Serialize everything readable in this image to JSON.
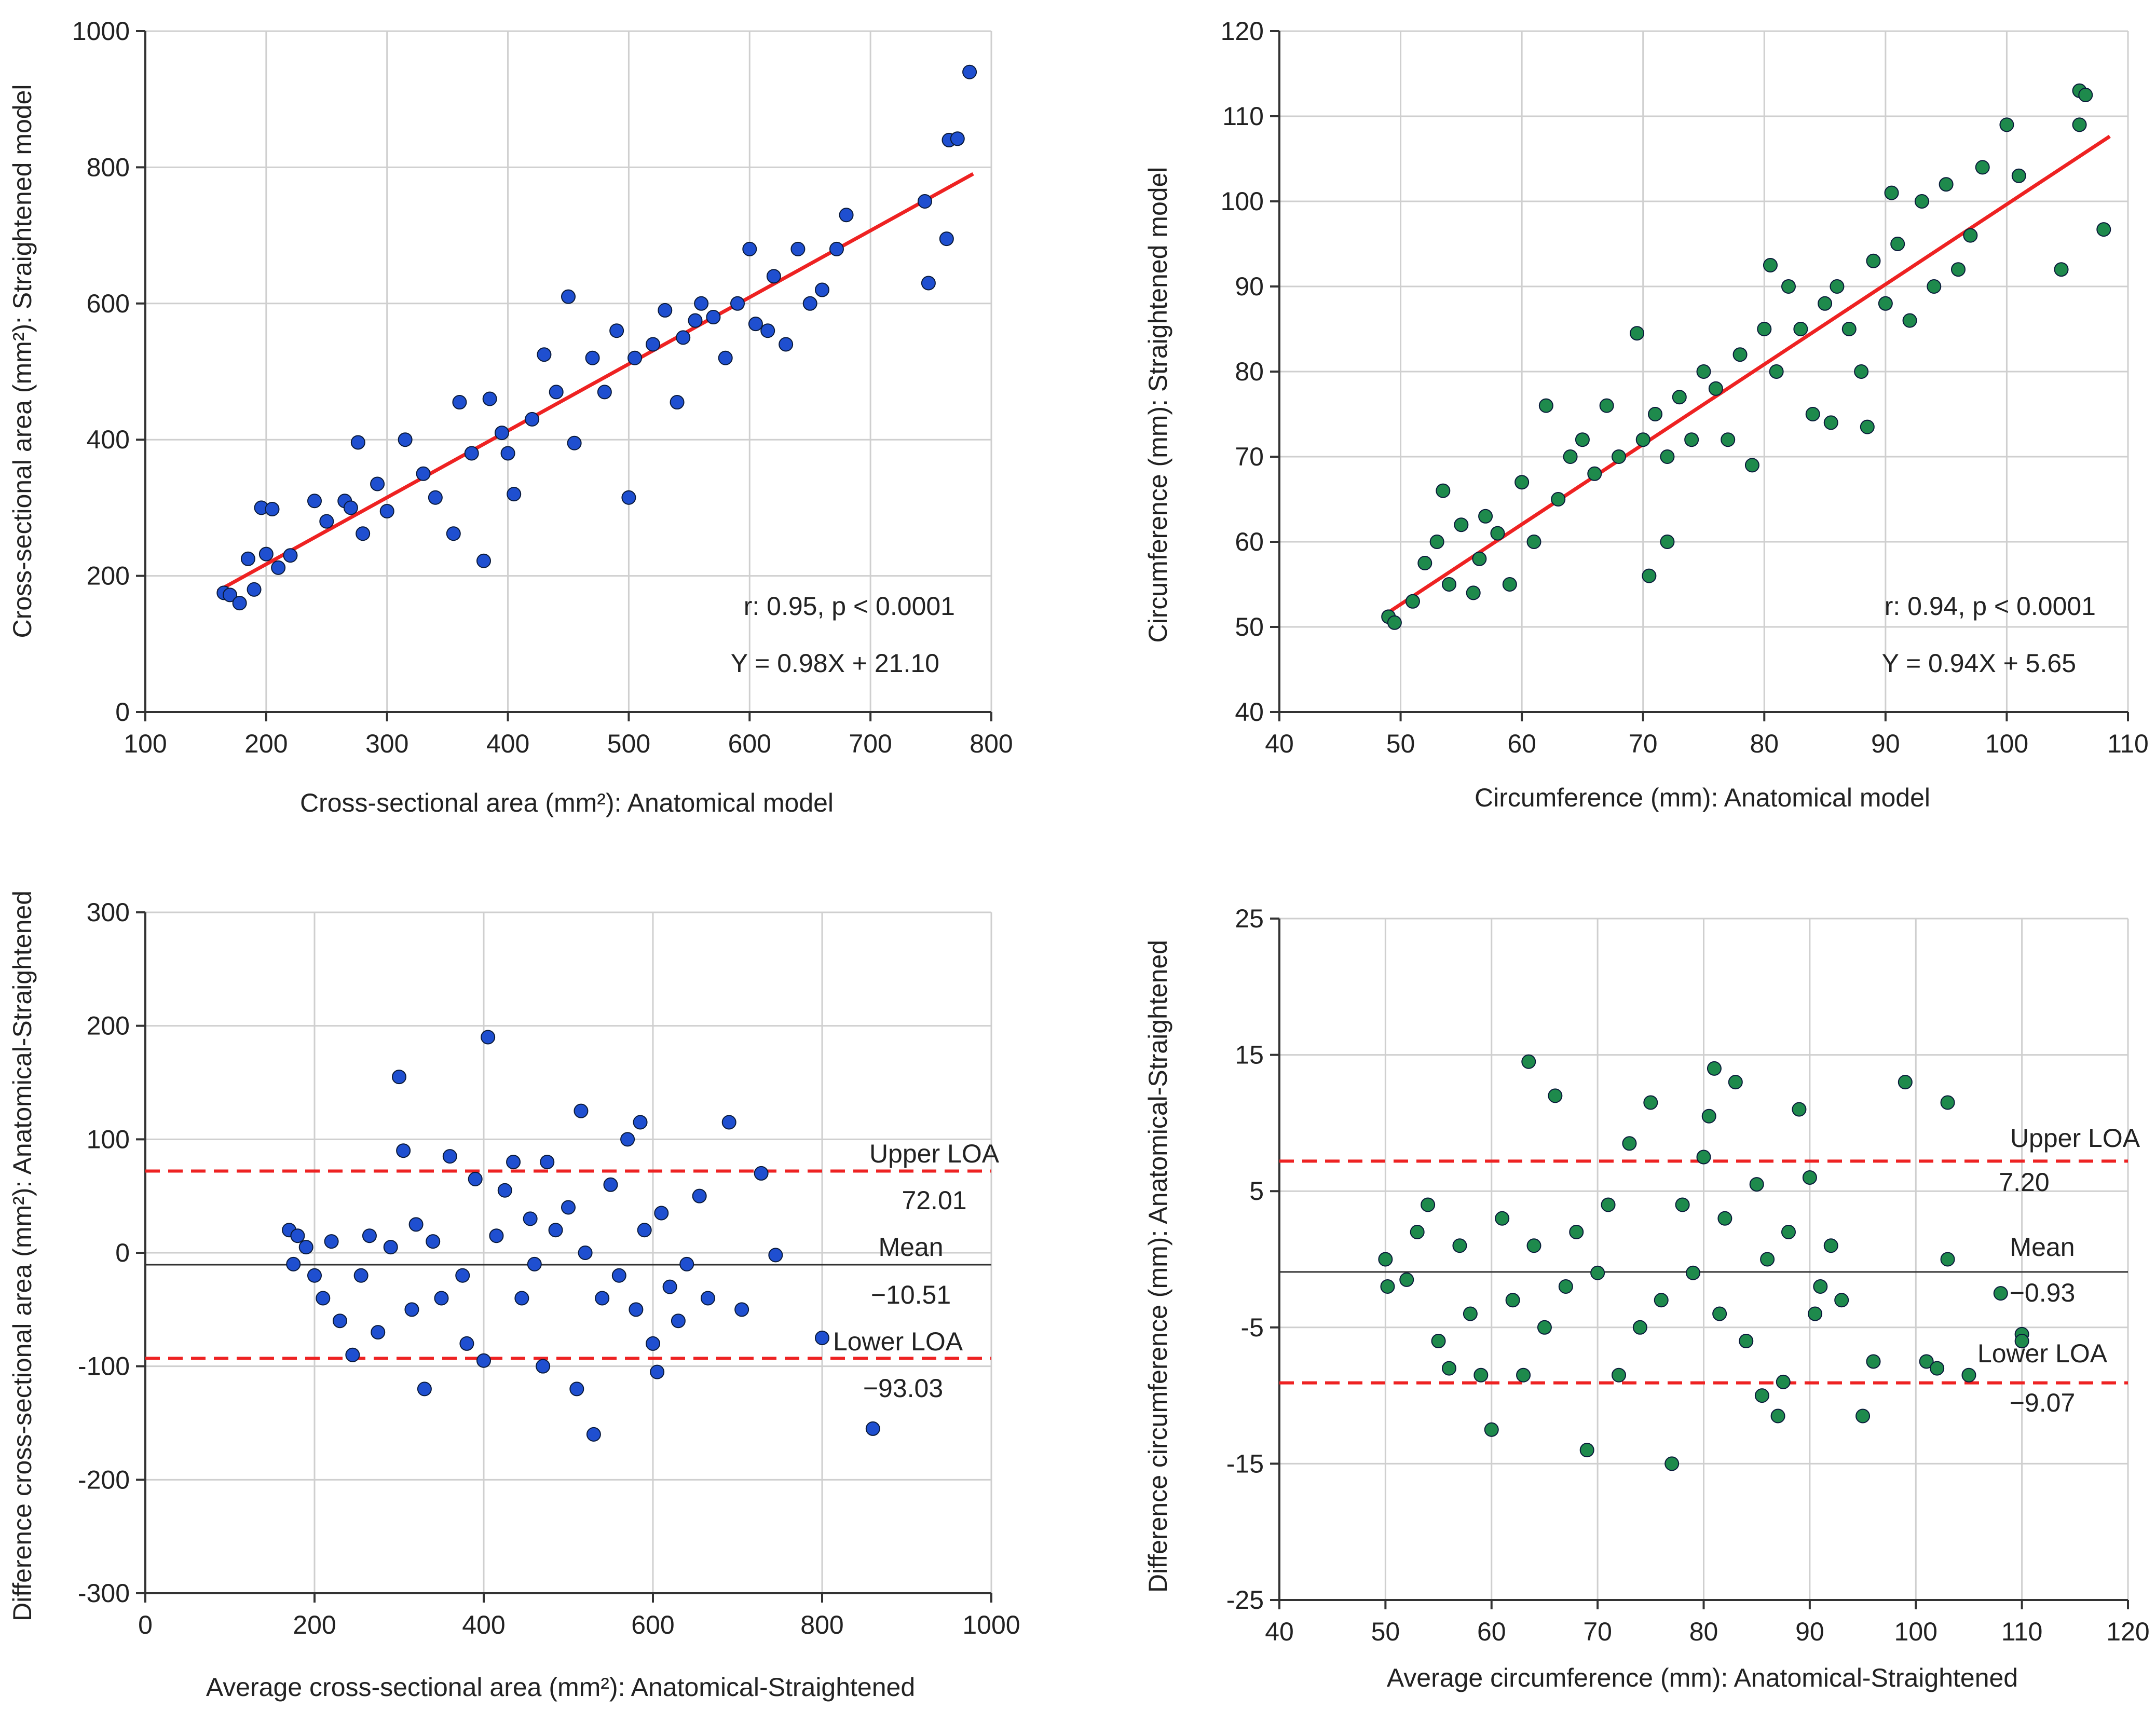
{
  "chart_data": [
    {
      "type": "scatter",
      "xlabel": "Cross-sectional area (mm²): Anatomical model",
      "ylabel": "Cross-sectional area (mm²): Straightened model",
      "xlim": [
        100,
        800
      ],
      "ylim": [
        0,
        1000
      ],
      "xticks": [
        100,
        200,
        300,
        400,
        500,
        600,
        700,
        800
      ],
      "yticks": [
        0,
        200,
        400,
        600,
        800,
        1000
      ],
      "grid": true,
      "point_color": "#1f4fd0",
      "line_color": "#ee2222",
      "annotations": [
        "r: 0.95, p < 0.0001",
        "Y = 0.98X + 21.10"
      ],
      "regression": {
        "slope": 0.98,
        "intercept": 21.1,
        "x_range": [
          160,
          785
        ]
      },
      "points": [
        [
          165,
          175
        ],
        [
          170,
          172
        ],
        [
          178,
          160
        ],
        [
          185,
          225
        ],
        [
          190,
          180
        ],
        [
          196,
          300
        ],
        [
          200,
          232
        ],
        [
          205,
          298
        ],
        [
          210,
          212
        ],
        [
          220,
          230
        ],
        [
          240,
          310
        ],
        [
          250,
          280
        ],
        [
          265,
          310
        ],
        [
          270,
          300
        ],
        [
          276,
          396
        ],
        [
          280,
          262
        ],
        [
          292,
          335
        ],
        [
          300,
          295
        ],
        [
          315,
          400
        ],
        [
          330,
          350
        ],
        [
          340,
          315
        ],
        [
          355,
          262
        ],
        [
          360,
          455
        ],
        [
          370,
          380
        ],
        [
          380,
          222
        ],
        [
          385,
          460
        ],
        [
          395,
          410
        ],
        [
          400,
          380
        ],
        [
          405,
          320
        ],
        [
          420,
          430
        ],
        [
          430,
          525
        ],
        [
          440,
          470
        ],
        [
          450,
          610
        ],
        [
          455,
          395
        ],
        [
          470,
          520
        ],
        [
          480,
          470
        ],
        [
          490,
          560
        ],
        [
          500,
          315
        ],
        [
          505,
          520
        ],
        [
          520,
          540
        ],
        [
          530,
          590
        ],
        [
          540,
          455
        ],
        [
          545,
          550
        ],
        [
          555,
          575
        ],
        [
          560,
          600
        ],
        [
          570,
          580
        ],
        [
          580,
          520
        ],
        [
          590,
          600
        ],
        [
          600,
          680
        ],
        [
          605,
          570
        ],
        [
          615,
          560
        ],
        [
          620,
          640
        ],
        [
          630,
          540
        ],
        [
          640,
          680
        ],
        [
          650,
          600
        ],
        [
          660,
          620
        ],
        [
          672,
          680
        ],
        [
          680,
          730
        ],
        [
          745,
          750
        ],
        [
          748,
          630
        ],
        [
          763,
          695
        ],
        [
          765,
          840
        ],
        [
          772,
          842
        ],
        [
          782,
          940
        ]
      ]
    },
    {
      "type": "scatter",
      "xlabel": "Circumference (mm): Anatomical model",
      "ylabel": "Circumference (mm): Straightened model",
      "xlim": [
        40,
        110
      ],
      "ylim": [
        40,
        120
      ],
      "xticks": [
        40,
        50,
        60,
        70,
        80,
        90,
        100,
        110
      ],
      "yticks": [
        40,
        50,
        60,
        70,
        80,
        90,
        100,
        110,
        120
      ],
      "grid": true,
      "point_color": "#1e8a4c",
      "line_color": "#ee2222",
      "annotations": [
        "r: 0.94, p < 0.0001",
        "Y = 0.94X + 5.65"
      ],
      "regression": {
        "slope": 0.94,
        "intercept": 5.65,
        "x_range": [
          49,
          108.5
        ]
      },
      "points": [
        [
          49,
          51.2
        ],
        [
          49.5,
          50.5
        ],
        [
          51,
          53
        ],
        [
          52,
          57.5
        ],
        [
          53,
          60
        ],
        [
          53.5,
          66
        ],
        [
          54,
          55
        ],
        [
          55,
          62
        ],
        [
          56,
          54
        ],
        [
          56.5,
          58
        ],
        [
          57,
          63
        ],
        [
          58,
          61
        ],
        [
          59,
          55
        ],
        [
          60,
          67
        ],
        [
          61,
          60
        ],
        [
          62,
          76
        ],
        [
          63,
          65
        ],
        [
          64,
          70
        ],
        [
          65,
          72
        ],
        [
          66,
          68
        ],
        [
          67,
          76
        ],
        [
          68,
          70
        ],
        [
          69.5,
          84.5
        ],
        [
          70,
          72
        ],
        [
          70.5,
          56
        ],
        [
          71,
          75
        ],
        [
          72,
          60
        ],
        [
          72,
          70
        ],
        [
          73,
          77
        ],
        [
          74,
          72
        ],
        [
          75,
          80
        ],
        [
          76,
          78
        ],
        [
          77,
          72
        ],
        [
          78,
          82
        ],
        [
          79,
          69
        ],
        [
          80,
          85
        ],
        [
          80.5,
          92.5
        ],
        [
          81,
          80
        ],
        [
          82,
          90
        ],
        [
          83,
          85
        ],
        [
          84,
          75
        ],
        [
          85,
          88
        ],
        [
          85.5,
          74
        ],
        [
          86,
          90
        ],
        [
          87,
          85
        ],
        [
          88,
          80
        ],
        [
          88.5,
          73.5
        ],
        [
          89,
          93
        ],
        [
          90,
          88
        ],
        [
          90.5,
          101
        ],
        [
          91,
          95
        ],
        [
          92,
          86
        ],
        [
          93,
          100
        ],
        [
          94,
          90
        ],
        [
          95,
          102
        ],
        [
          96,
          92
        ],
        [
          97,
          96
        ],
        [
          98,
          104
        ],
        [
          100,
          109
        ],
        [
          101,
          103
        ],
        [
          104.5,
          92
        ],
        [
          106,
          113
        ],
        [
          106,
          109
        ],
        [
          106.5,
          112.5
        ],
        [
          108,
          96.7
        ]
      ]
    },
    {
      "type": "scatter",
      "xlabel": "Average cross-sectional area (mm²): Anatomical-Straightened",
      "ylabel": "Difference cross-sectional area (mm²): Anatomical-Straightened",
      "xlim": [
        0,
        1000
      ],
      "ylim": [
        -300,
        300
      ],
      "xticks": [
        0,
        200,
        400,
        600,
        800,
        1000
      ],
      "yticks": [
        -300,
        -200,
        -100,
        0,
        100,
        200,
        300
      ],
      "grid": true,
      "point_color": "#1f4fd0",
      "mean": -10.51,
      "upper_loa": 72.01,
      "lower_loa": -93.03,
      "labels": {
        "upper": "Upper LOA",
        "upper_value": "72.01",
        "mean": "Mean",
        "mean_value": "−10.51",
        "lower": "Lower LOA",
        "lower_value": "−93.03"
      },
      "points": [
        [
          170,
          20
        ],
        [
          175,
          -10
        ],
        [
          180,
          15
        ],
        [
          190,
          5
        ],
        [
          200,
          -20
        ],
        [
          210,
          -40
        ],
        [
          220,
          10
        ],
        [
          230,
          -60
        ],
        [
          245,
          -90
        ],
        [
          255,
          -20
        ],
        [
          265,
          15
        ],
        [
          275,
          -70
        ],
        [
          290,
          5
        ],
        [
          300,
          155
        ],
        [
          305,
          90
        ],
        [
          315,
          -50
        ],
        [
          320,
          25
        ],
        [
          330,
          -120
        ],
        [
          340,
          10
        ],
        [
          350,
          -40
        ],
        [
          360,
          85
        ],
        [
          375,
          -20
        ],
        [
          380,
          -80
        ],
        [
          390,
          65
        ],
        [
          400,
          -95
        ],
        [
          405,
          190
        ],
        [
          415,
          15
        ],
        [
          425,
          55
        ],
        [
          435,
          80
        ],
        [
          445,
          -40
        ],
        [
          455,
          30
        ],
        [
          460,
          -10
        ],
        [
          470,
          -100
        ],
        [
          475,
          80
        ],
        [
          485,
          20
        ],
        [
          500,
          40
        ],
        [
          510,
          -120
        ],
        [
          515,
          125
        ],
        [
          520,
          0
        ],
        [
          530,
          -160
        ],
        [
          540,
          -40
        ],
        [
          550,
          60
        ],
        [
          560,
          -20
        ],
        [
          570,
          100
        ],
        [
          580,
          -50
        ],
        [
          585,
          115
        ],
        [
          590,
          20
        ],
        [
          600,
          -80
        ],
        [
          605,
          -105
        ],
        [
          610,
          35
        ],
        [
          620,
          -30
        ],
        [
          630,
          -60
        ],
        [
          640,
          -10
        ],
        [
          655,
          50
        ],
        [
          665,
          -40
        ],
        [
          690,
          115
        ],
        [
          705,
          -50
        ],
        [
          728,
          70
        ],
        [
          745,
          -2
        ],
        [
          800,
          -75
        ],
        [
          860,
          -155
        ]
      ]
    },
    {
      "type": "scatter",
      "xlabel": "Average circumference (mm): Anatomical-Straightened",
      "ylabel": "Difference circumference (mm): Anatomical-Straightened",
      "xlim": [
        40,
        120
      ],
      "ylim": [
        -25,
        25
      ],
      "xticks": [
        40,
        50,
        60,
        70,
        80,
        90,
        100,
        110,
        120
      ],
      "yticks": [
        -25,
        -15,
        -5,
        5,
        15,
        25
      ],
      "grid": true,
      "point_color": "#1e8a4c",
      "mean": -0.93,
      "upper_loa": 7.2,
      "lower_loa": -9.07,
      "labels": {
        "upper": "Upper LOA",
        "upper_value": "7.20",
        "mean": "Mean",
        "mean_value": "−0.93",
        "lower": "Lower LOA",
        "lower_value": "−9.07"
      },
      "points": [
        [
          50,
          0
        ],
        [
          50.2,
          -2
        ],
        [
          52,
          -1.5
        ],
        [
          53,
          2
        ],
        [
          54,
          4
        ],
        [
          55,
          -6
        ],
        [
          56,
          -8
        ],
        [
          57,
          1
        ],
        [
          58,
          -4
        ],
        [
          59,
          -8.5
        ],
        [
          60,
          -12.5
        ],
        [
          61,
          3
        ],
        [
          62,
          -3
        ],
        [
          63,
          -8.5
        ],
        [
          63.5,
          14.5
        ],
        [
          64,
          1
        ],
        [
          65,
          -5
        ],
        [
          66,
          12
        ],
        [
          67,
          -2
        ],
        [
          68,
          2
        ],
        [
          69,
          -14
        ],
        [
          70,
          -1
        ],
        [
          71,
          4
        ],
        [
          72,
          -8.5
        ],
        [
          73,
          8.5
        ],
        [
          74,
          -5
        ],
        [
          75,
          11.5
        ],
        [
          76,
          -3
        ],
        [
          77,
          -15
        ],
        [
          78,
          4
        ],
        [
          79,
          -1
        ],
        [
          80,
          7.5
        ],
        [
          80.5,
          10.5
        ],
        [
          81,
          14
        ],
        [
          81.5,
          -4
        ],
        [
          82,
          3
        ],
        [
          83,
          13
        ],
        [
          84,
          -6
        ],
        [
          85,
          5.5
        ],
        [
          85.5,
          -10
        ],
        [
          86,
          0
        ],
        [
          87,
          -11.5
        ],
        [
          87.5,
          -9
        ],
        [
          88,
          2
        ],
        [
          89,
          11
        ],
        [
          90,
          6
        ],
        [
          90.5,
          -4
        ],
        [
          91,
          -2
        ],
        [
          92,
          1
        ],
        [
          93,
          -3
        ],
        [
          95,
          -11.5
        ],
        [
          96,
          -7.5
        ],
        [
          99,
          13
        ],
        [
          101,
          -7.5
        ],
        [
          102,
          -8
        ],
        [
          103,
          11.5
        ],
        [
          103,
          0
        ],
        [
          105,
          -8.5
        ],
        [
          108,
          -2.5
        ],
        [
          110,
          -5.5
        ],
        [
          110,
          -6
        ]
      ]
    }
  ]
}
